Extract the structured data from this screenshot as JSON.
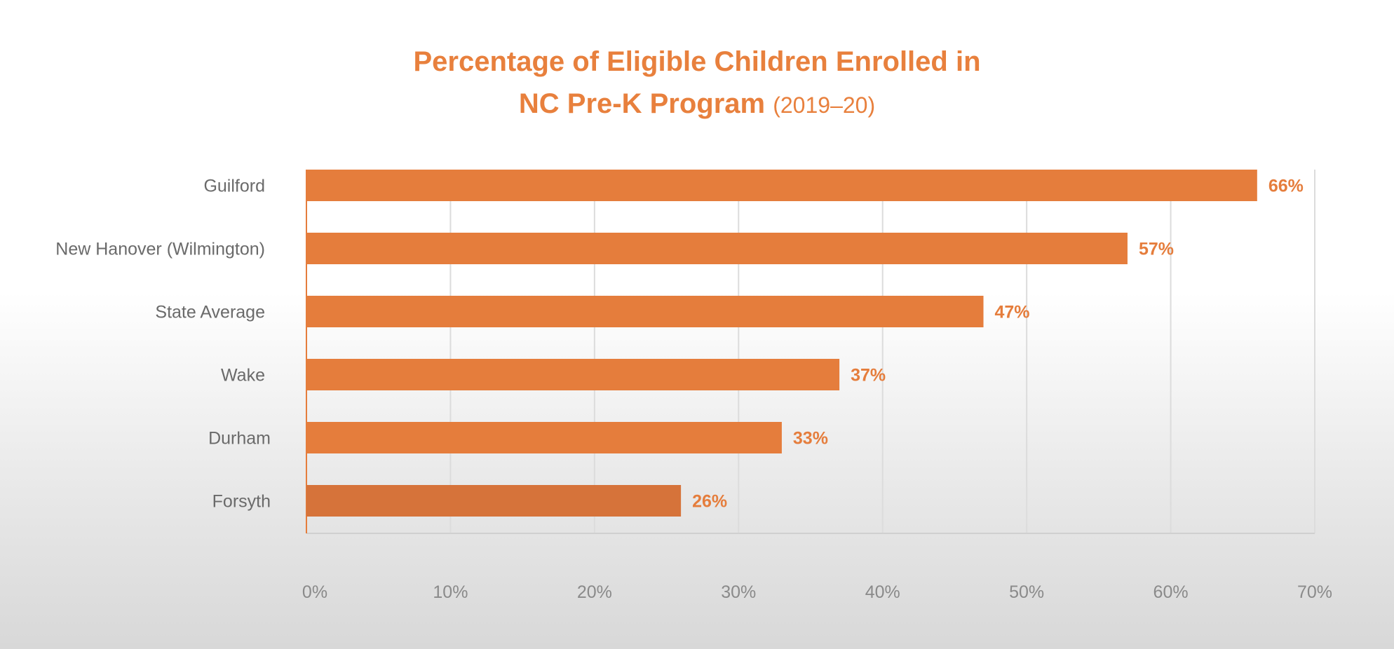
{
  "chart_data": {
    "type": "bar",
    "orientation": "horizontal",
    "title_line1": "Percentage of Eligible Children Enrolled in",
    "title_line2": "NC Pre-K Program",
    "subtitle": "(2019–20)",
    "categories": [
      "Guilford",
      "New Hanover (Wilmington)",
      "State Average",
      "Wake",
      "Durham",
      "Forsyth"
    ],
    "values": [
      66,
      57,
      47,
      37,
      33,
      26
    ],
    "data_labels": [
      "66%",
      "57%",
      "47%",
      "37%",
      "33%",
      "26%"
    ],
    "xlim": [
      0,
      70
    ],
    "x_ticks": [
      "0%",
      "10%",
      "20%",
      "30%",
      "40%",
      "50%",
      "60%",
      "70%"
    ],
    "xlabel": "",
    "ylabel": "",
    "grid": true,
    "bar_color": "#e57d3c",
    "highlight_color": "#d6733a"
  }
}
